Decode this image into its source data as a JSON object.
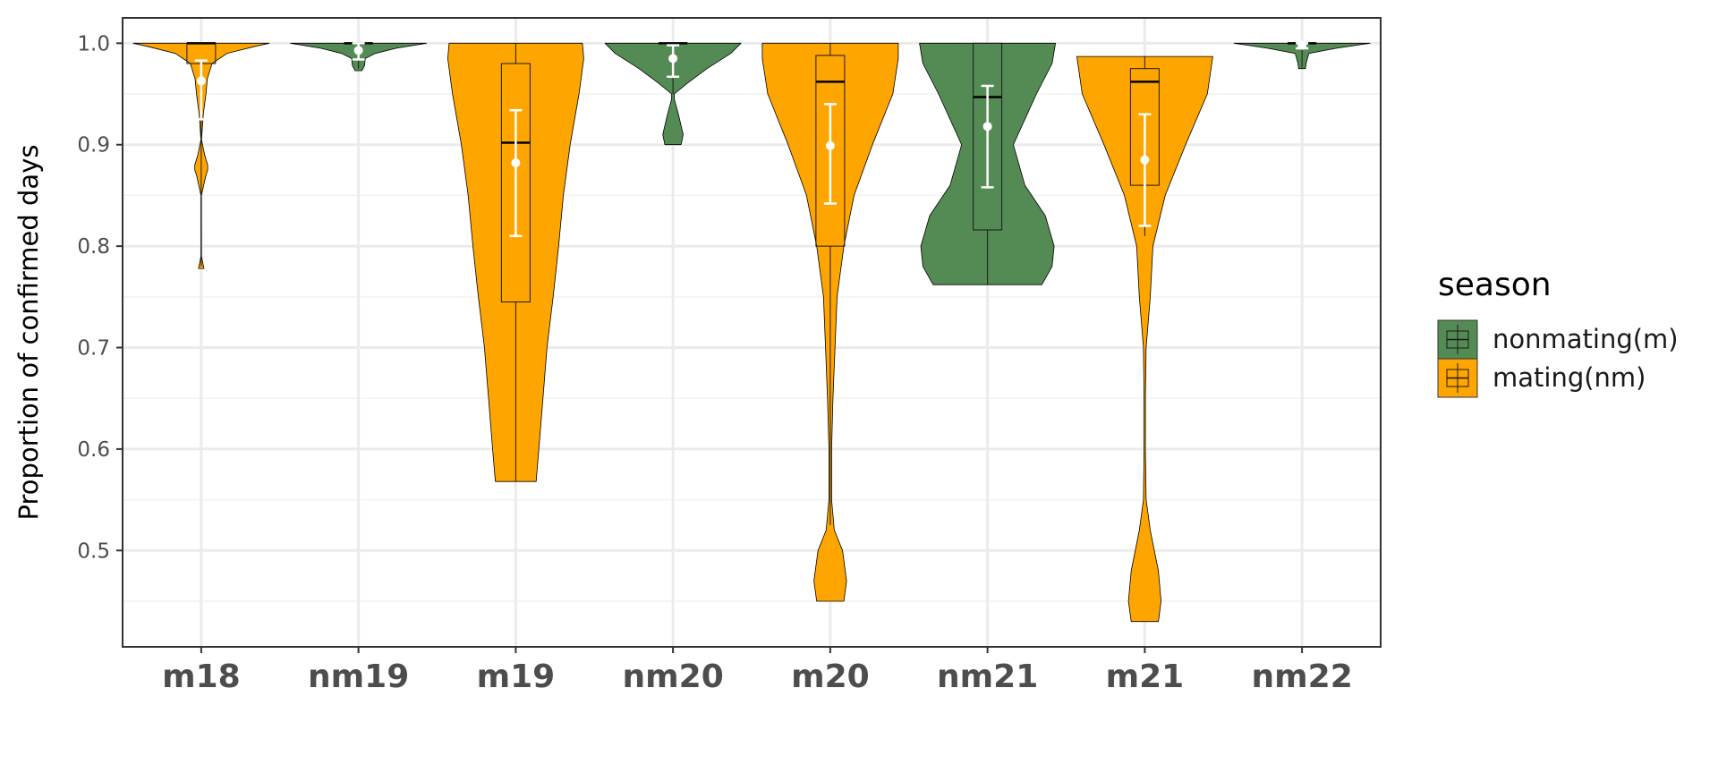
{
  "chart_data": {
    "type": "violin",
    "ylabel": "Proportion of confirmed days",
    "xlabel": "",
    "ylim": [
      0.405,
      1.025
    ],
    "yticks": [
      0.5,
      0.6,
      0.7,
      0.8,
      0.9,
      1.0
    ],
    "ytick_labels": [
      "0.5",
      "0.6",
      "0.7",
      "0.8",
      "0.9",
      "1.0"
    ],
    "grid": true,
    "legend": {
      "title": "season",
      "position": "right",
      "entries": [
        {
          "label": "nonmating(m)",
          "color": "#548b54"
        },
        {
          "label": "mating(nm)",
          "color": "#ffa500"
        }
      ]
    },
    "categories": [
      "m18",
      "nm19",
      "m19",
      "nm20",
      "m20",
      "nm21",
      "m21",
      "nm22"
    ],
    "groups": [
      {
        "category": "m18",
        "season": "mating(nm)",
        "violin_y": [
          0.778,
          0.79,
          0.85,
          0.87,
          0.875,
          0.88,
          0.89,
          0.905,
          0.93,
          0.95,
          0.965,
          0.98,
          0.99,
          0.997,
          1.0
        ],
        "violin_halfwidth": [
          0.04,
          0.004,
          0.003,
          0.07,
          0.095,
          0.095,
          0.05,
          0.004,
          0.03,
          0.07,
          0.09,
          0.16,
          0.38,
          0.8,
          1.0
        ],
        "box": {
          "q1": 0.98,
          "median": 1.0,
          "q3": 1.0,
          "lower": 0.78,
          "upper": 1.0
        },
        "mean": 0.963,
        "ci": [
          0.925,
          0.983
        ]
      },
      {
        "category": "nm19",
        "season": "nonmating(m)",
        "violin_y": [
          0.973,
          0.978,
          0.985,
          0.99,
          0.995,
          1.0
        ],
        "violin_halfwidth": [
          0.05,
          0.09,
          0.1,
          0.25,
          0.55,
          1.0
        ],
        "box": {
          "q1": 1.0,
          "median": 1.0,
          "q3": 1.0,
          "lower": 0.975,
          "upper": 1.0
        },
        "mean": 0.993,
        "ci": [
          0.984,
          1.0
        ]
      },
      {
        "category": "m19",
        "season": "mating(nm)",
        "violin_y": [
          0.568,
          0.6,
          0.65,
          0.7,
          0.75,
          0.8,
          0.85,
          0.9,
          0.95,
          0.985,
          1.0
        ],
        "violin_halfwidth": [
          0.3,
          0.34,
          0.4,
          0.46,
          0.55,
          0.63,
          0.7,
          0.8,
          0.93,
          1.0,
          0.98
        ],
        "box": {
          "q1": 0.745,
          "median": 0.902,
          "q3": 0.98,
          "lower": 0.568,
          "upper": 1.0
        },
        "mean": 0.882,
        "ci": [
          0.81,
          0.934
        ]
      },
      {
        "category": "nm20",
        "season": "nonmating(m)",
        "violin_y": [
          0.9,
          0.91,
          0.93,
          0.945,
          0.95,
          0.96,
          0.975,
          0.99,
          1.0
        ],
        "violin_halfwidth": [
          0.12,
          0.15,
          0.08,
          0.02,
          0.02,
          0.2,
          0.5,
          0.85,
          1.0
        ],
        "box": {
          "q1": 1.0,
          "median": 1.0,
          "q3": 1.0,
          "lower": 0.95,
          "upper": 1.0
        },
        "mean": 0.985,
        "ci": [
          0.967,
          0.998
        ]
      },
      {
        "category": "m20",
        "season": "mating(nm)",
        "violin_y": [
          0.45,
          0.47,
          0.5,
          0.52,
          0.55,
          0.6,
          0.65,
          0.7,
          0.75,
          0.8,
          0.85,
          0.9,
          0.95,
          0.985,
          1.0
        ],
        "violin_halfwidth": [
          0.2,
          0.24,
          0.18,
          0.06,
          0.02,
          0.02,
          0.04,
          0.07,
          0.1,
          0.2,
          0.35,
          0.62,
          0.92,
          1.0,
          1.0
        ],
        "box": {
          "q1": 0.8,
          "median": 0.962,
          "q3": 0.988,
          "lower": 0.525,
          "upper": 1.0
        },
        "mean": 0.899,
        "ci": [
          0.842,
          0.94
        ]
      },
      {
        "category": "nm21",
        "season": "nonmating(m)",
        "violin_y": [
          0.762,
          0.78,
          0.8,
          0.83,
          0.86,
          0.9,
          0.95,
          0.98,
          1.0
        ],
        "violin_halfwidth": [
          0.8,
          0.95,
          0.98,
          0.85,
          0.55,
          0.38,
          0.72,
          0.95,
          1.0
        ],
        "box": {
          "q1": 0.816,
          "median": 0.947,
          "q3": 1.0,
          "lower": 0.762,
          "upper": 1.0
        },
        "mean": 0.918,
        "ci": [
          0.858,
          0.958
        ]
      },
      {
        "category": "m21",
        "season": "mating(nm)",
        "violin_y": [
          0.43,
          0.45,
          0.48,
          0.52,
          0.55,
          0.6,
          0.65,
          0.7,
          0.75,
          0.8,
          0.85,
          0.9,
          0.95,
          0.987
        ],
        "violin_halfwidth": [
          0.2,
          0.24,
          0.2,
          0.08,
          0.02,
          0.01,
          0.01,
          0.02,
          0.08,
          0.12,
          0.3,
          0.6,
          0.92,
          1.0
        ],
        "box": {
          "q1": 0.86,
          "median": 0.962,
          "q3": 0.975,
          "lower": 0.81,
          "upper": 0.987
        },
        "mean": 0.885,
        "ci": [
          0.82,
          0.93
        ]
      },
      {
        "category": "nm22",
        "season": "nonmating(m)",
        "violin_y": [
          0.975,
          0.98,
          0.99,
          0.995,
          1.0
        ],
        "violin_halfwidth": [
          0.05,
          0.06,
          0.1,
          0.5,
          1.0
        ],
        "box": {
          "q1": 1.0,
          "median": 1.0,
          "q3": 1.0,
          "lower": 0.976,
          "upper": 1.0
        },
        "mean": 0.998,
        "ci": [
          0.995,
          1.0
        ]
      }
    ],
    "colors": {
      "nonmating(m)": "#548b54",
      "mating(nm)": "#ffa500",
      "summary_point": "#ffffff"
    }
  }
}
